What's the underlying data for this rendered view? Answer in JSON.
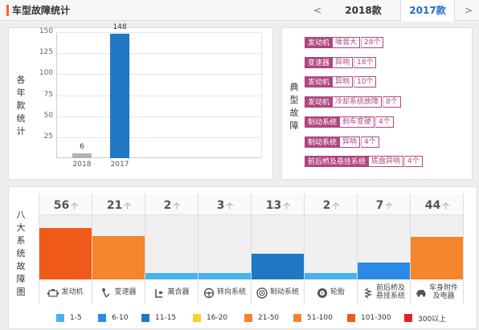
{
  "header": {
    "title": "车型故障统计",
    "prev_glyph": "<",
    "next_glyph": ">",
    "tabs": [
      {
        "label": "2018款",
        "active": false
      },
      {
        "label": "2017款",
        "active": true
      }
    ]
  },
  "year_chart": {
    "ylabel_chars": [
      "各",
      "年",
      "款",
      "统",
      "计"
    ],
    "yticks": [
      "150",
      "125",
      "100",
      "75",
      "50",
      "25"
    ],
    "bars": [
      {
        "year": "2018",
        "value_label": "6",
        "color": "#b3b3b3"
      },
      {
        "year": "2017",
        "value_label": "148",
        "color": "#1f78c1"
      }
    ]
  },
  "chart_data": {
    "type": "bar",
    "categories": [
      "2018",
      "2017"
    ],
    "values": [
      6,
      148
    ],
    "ylim": [
      0,
      150
    ]
  },
  "typical_faults": {
    "label_chars": [
      "典",
      "型",
      "故",
      "障"
    ],
    "items": [
      {
        "system": "发动机",
        "desc": "噪音大",
        "count": "28个"
      },
      {
        "system": "变速器",
        "desc": "异响",
        "count": "18个"
      },
      {
        "system": "发动机",
        "desc": "异响",
        "count": "10个"
      },
      {
        "system": "发动机",
        "desc": "冷却系统故障",
        "count": "8个"
      },
      {
        "system": "制动系统",
        "desc": "刹车变硬",
        "count": "4个"
      },
      {
        "system": "制动系统",
        "desc": "异响",
        "count": "4个"
      },
      {
        "system": "前后桥及悬挂系统",
        "desc": "底盘异响",
        "count": "4个"
      }
    ]
  },
  "systems": {
    "label_chars": [
      "八",
      "大",
      "系",
      "统",
      "故",
      "障",
      "图"
    ],
    "unit": "个",
    "columns": [
      {
        "name": "发动机",
        "count": "56",
        "level": 0.8,
        "color": "#f05a1a",
        "icon": "engine-icon"
      },
      {
        "name": "变速器",
        "count": "21",
        "level": 0.68,
        "color": "#f5842a",
        "icon": "gear-shift-icon"
      },
      {
        "name": "离合器",
        "count": "2",
        "level": 0.1,
        "color": "#45b2ef",
        "icon": "clutch-icon"
      },
      {
        "name": "转向系统",
        "count": "3",
        "level": 0.1,
        "color": "#45b2ef",
        "icon": "steering-wheel-icon"
      },
      {
        "name": "制动系统",
        "count": "13",
        "level": 0.4,
        "color": "#1f78c1",
        "icon": "brake-disc-icon"
      },
      {
        "name": "轮胎",
        "count": "2",
        "level": 0.1,
        "color": "#45b2ef",
        "icon": "tire-icon"
      },
      {
        "name_lines": [
          "前后桥及",
          "悬挂系统"
        ],
        "count": "7",
        "level": 0.26,
        "color": "#2c8ae6",
        "icon": "suspension-icon"
      },
      {
        "name_lines": [
          "车身附件",
          "及电器"
        ],
        "count": "44",
        "level": 0.66,
        "color": "#f5842a",
        "icon": "car-body-icon"
      }
    ]
  },
  "legend": [
    {
      "label": "1-5",
      "color": "#45b2ef"
    },
    {
      "label": "6-10",
      "color": "#2c8ae6"
    },
    {
      "label": "11-15",
      "color": "#1f78c1"
    },
    {
      "label": "16-20",
      "color": "#f5d42a"
    },
    {
      "label": "21-50",
      "color": "#f5842a"
    },
    {
      "label": "51-100",
      "color": "#f5842a"
    },
    {
      "label": "101-300",
      "color": "#f05a1a"
    },
    {
      "label": "300以上",
      "color": "#e42222"
    }
  ]
}
